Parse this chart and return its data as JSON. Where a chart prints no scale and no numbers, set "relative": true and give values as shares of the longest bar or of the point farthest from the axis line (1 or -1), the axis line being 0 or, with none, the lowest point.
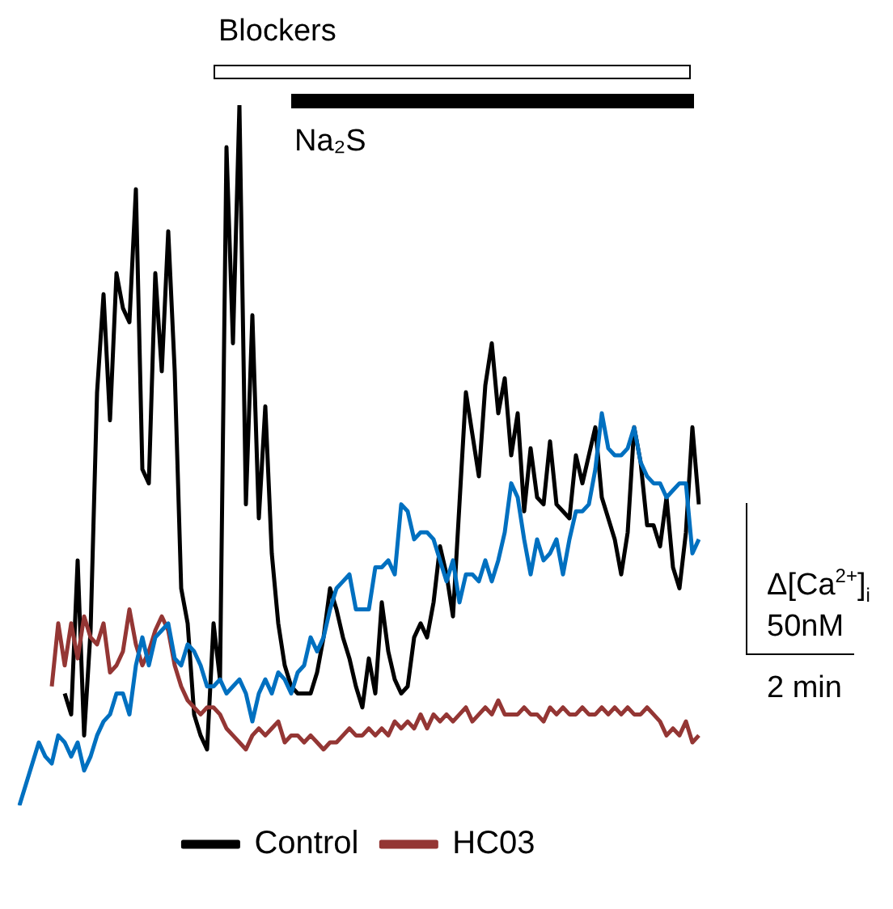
{
  "chart_data": {
    "type": "line",
    "relative": true,
    "legend": "bottom",
    "marker": "none",
    "line_style": "solid",
    "tick_labels": false,
    "categories": [
      null,
      null,
      null,
      null,
      null,
      null,
      null,
      null,
      null,
      null,
      null,
      null,
      null,
      null,
      null,
      null,
      null,
      null,
      null,
      null,
      null,
      null,
      null,
      null,
      null,
      null,
      null,
      null,
      null,
      null,
      null,
      null,
      null,
      null,
      null,
      null,
      null,
      null,
      null,
      null,
      null,
      null,
      null,
      null,
      null,
      null,
      null,
      null,
      null,
      null,
      null,
      null,
      null,
      null,
      null,
      null,
      null,
      null,
      null,
      null,
      null,
      null,
      null,
      null,
      null,
      null,
      null,
      null,
      null,
      null,
      null,
      null,
      null,
      null,
      null,
      null,
      null,
      null,
      null,
      null,
      null,
      null,
      null,
      null,
      null,
      null,
      null,
      null,
      null,
      null,
      null,
      null,
      null,
      null,
      null,
      null,
      null,
      null,
      null,
      null,
      null,
      null,
      null,
      null,
      null,
      null
    ],
    "series": [
      {
        "name": "Control",
        "color": "#000000",
        "values": [
          null,
          null,
          null,
          null,
          null,
          null,
          null,
          0.16,
          0.13,
          0.35,
          0.1,
          0.25,
          0.59,
          0.73,
          0.55,
          0.76,
          0.71,
          0.69,
          0.88,
          0.48,
          0.46,
          0.76,
          0.62,
          0.82,
          0.62,
          0.31,
          0.26,
          0.13,
          0.1,
          0.08,
          0.26,
          0.18,
          0.94,
          0.66,
          1,
          0.43,
          0.7,
          0.41,
          0.57,
          0.36,
          0.26,
          0.2,
          0.17,
          0.16,
          0.16,
          0.16,
          0.19,
          0.24,
          0.31,
          0.28,
          0.24,
          0.21,
          0.17,
          0.14,
          0.21,
          0.16,
          0.29,
          0.22,
          0.18,
          0.16,
          0.17,
          0.24,
          0.26,
          0.24,
          0.29,
          0.37,
          0.33,
          0.27,
          0.43,
          0.59,
          0.53,
          0.47,
          0.6,
          0.66,
          0.56,
          0.61,
          0.5,
          0.56,
          0.42,
          0.51,
          0.44,
          0.43,
          0.52,
          0.43,
          0.42,
          0.41,
          0.5,
          0.46,
          0.5,
          0.54,
          0.44,
          0.41,
          0.38,
          0.33,
          0.39,
          0.54,
          0.49,
          0.4,
          0.4,
          0.37,
          0.44,
          0.34,
          0.31,
          0.39,
          0.54,
          0.43
        ]
      },
      {
        "name": "HC03",
        "color": "#943634",
        "values": [
          null,
          null,
          null,
          null,
          null,
          0.17,
          0.26,
          0.2,
          0.26,
          0.21,
          0.27,
          0.24,
          0.23,
          0.26,
          0.19,
          0.2,
          0.22,
          0.28,
          0.23,
          0.2,
          0.22,
          0.25,
          0.27,
          0.25,
          0.2,
          0.17,
          0.15,
          0.14,
          0.13,
          0.14,
          0.14,
          0.13,
          0.11,
          0.1,
          0.09,
          0.08,
          0.1,
          0.11,
          0.1,
          0.11,
          0.12,
          0.09,
          0.1,
          0.1,
          0.09,
          0.1,
          0.09,
          0.08,
          0.09,
          0.09,
          0.1,
          0.11,
          0.1,
          0.1,
          0.11,
          0.1,
          0.11,
          0.1,
          0.12,
          0.11,
          0.12,
          0.11,
          0.13,
          0.11,
          0.13,
          0.12,
          0.13,
          0.12,
          0.13,
          0.14,
          0.12,
          0.13,
          0.14,
          0.13,
          0.15,
          0.13,
          0.13,
          0.13,
          0.14,
          0.13,
          0.13,
          0.12,
          0.14,
          0.13,
          0.14,
          0.13,
          0.13,
          0.14,
          0.13,
          0.13,
          0.14,
          0.13,
          0.14,
          0.13,
          0.14,
          0.13,
          0.13,
          0.14,
          0.13,
          0.12,
          0.1,
          0.11,
          0.1,
          0.12,
          0.09,
          0.1
        ]
      },
      {
        "color": "#0070c0",
        "values": [
          0,
          0.03,
          0.06,
          0.09,
          0.07,
          0.06,
          0.1,
          0.09,
          0.07,
          0.09,
          0.05,
          0.07,
          0.1,
          0.12,
          0.13,
          0.16,
          0.16,
          0.13,
          0.2,
          0.24,
          0.2,
          0.24,
          0.25,
          0.26,
          0.21,
          0.2,
          0.23,
          0.22,
          0.2,
          0.17,
          0.17,
          0.18,
          0.16,
          0.17,
          0.18,
          0.16,
          0.12,
          0.16,
          0.18,
          0.16,
          0.19,
          0.18,
          0.16,
          0.19,
          0.2,
          0.24,
          0.22,
          0.24,
          0.28,
          0.31,
          0.32,
          0.33,
          0.28,
          0.28,
          0.28,
          0.34,
          0.34,
          0.35,
          0.33,
          0.43,
          0.42,
          0.38,
          0.39,
          0.39,
          0.38,
          0.35,
          0.32,
          0.35,
          0.29,
          0.33,
          0.33,
          0.32,
          0.35,
          0.32,
          0.35,
          0.39,
          0.46,
          0.44,
          0.38,
          0.33,
          0.38,
          0.35,
          0.36,
          0.38,
          0.33,
          0.38,
          0.42,
          0.42,
          0.43,
          0.48,
          0.56,
          0.51,
          0.5,
          0.5,
          0.51,
          0.54,
          0.49,
          0.47,
          0.46,
          0.46,
          0.44,
          0.45,
          0.46,
          0.46,
          0.36,
          0.38
        ]
      }
    ],
    "annotations": [
      "Blockers",
      "Na₂S",
      "Δ[Ca$^{2+}$]$_{i}$",
      "50nM",
      "2 min"
    ]
  }
}
